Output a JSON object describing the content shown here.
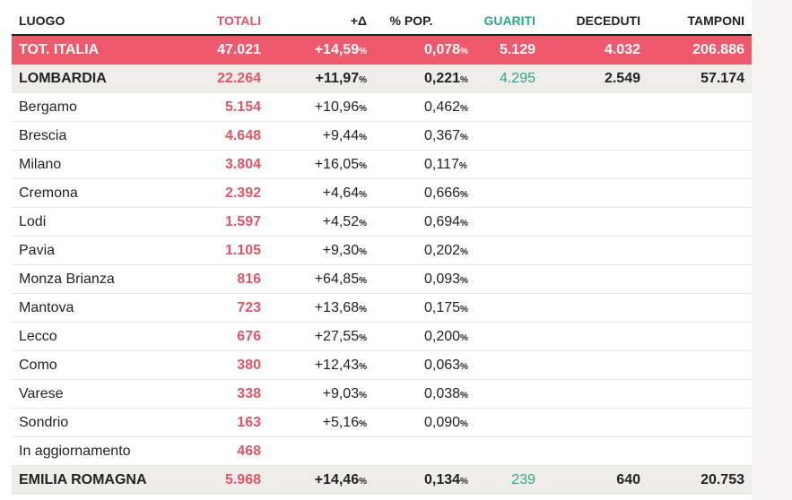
{
  "headers": {
    "luogo": "LUOGO",
    "totali": "TOTALI",
    "delta": "+Δ",
    "pop": "% POP.",
    "guariti": "GUARITI",
    "deceduti": "DECEDUTI",
    "tamponi": "TAMPONI"
  },
  "pct_sign": "%",
  "total": {
    "luogo": "TOT. ITALIA",
    "totali": "47.021",
    "delta": "+14,59",
    "pop": "0,078",
    "guariti": "5.129",
    "deceduti": "4.032",
    "tamponi": "206.886"
  },
  "lombardia": {
    "luogo": "LOMBARDIA",
    "totali": "22.264",
    "delta": "+11,97",
    "pop": "0,221",
    "guariti": "4.295",
    "deceduti": "2.549",
    "tamponi": "57.174"
  },
  "provinces": [
    {
      "luogo": "Bergamo",
      "totali": "5.154",
      "delta": "+10,96",
      "pop": "0,462"
    },
    {
      "luogo": "Brescia",
      "totali": "4.648",
      "delta": "+9,44",
      "pop": "0,367"
    },
    {
      "luogo": "Milano",
      "totali": "3.804",
      "delta": "+16,05",
      "pop": "0,117"
    },
    {
      "luogo": "Cremona",
      "totali": "2.392",
      "delta": "+4,64",
      "pop": "0,666"
    },
    {
      "luogo": "Lodi",
      "totali": "1.597",
      "delta": "+4,52",
      "pop": "0,694"
    },
    {
      "luogo": "Pavia",
      "totali": "1.105",
      "delta": "+9,30",
      "pop": "0,202"
    },
    {
      "luogo": "Monza Brianza",
      "totali": "816",
      "delta": "+64,85",
      "pop": "0,093"
    },
    {
      "luogo": "Mantova",
      "totali": "723",
      "delta": "+13,68",
      "pop": "0,175"
    },
    {
      "luogo": "Lecco",
      "totali": "676",
      "delta": "+27,55",
      "pop": "0,200"
    },
    {
      "luogo": "Como",
      "totali": "380",
      "delta": "+12,43",
      "pop": "0,063"
    },
    {
      "luogo": "Varese",
      "totali": "338",
      "delta": "+9,03",
      "pop": "0,038"
    },
    {
      "luogo": "Sondrio",
      "totali": "163",
      "delta": "+5,16",
      "pop": "0,090"
    },
    {
      "luogo": "In aggiornamento",
      "totali": "468",
      "delta": "",
      "pop": ""
    }
  ],
  "emilia": {
    "luogo": "EMILIA ROMAGNA",
    "totali": "5.968",
    "delta": "+14,46",
    "pop": "0,134",
    "guariti": "239",
    "deceduti": "640",
    "tamponi": "20.753"
  },
  "colors": {
    "total_bg": "#ee5a6b",
    "region_bg": "#efede9",
    "totali": "#e0556a",
    "guariti": "#2aa88a"
  }
}
